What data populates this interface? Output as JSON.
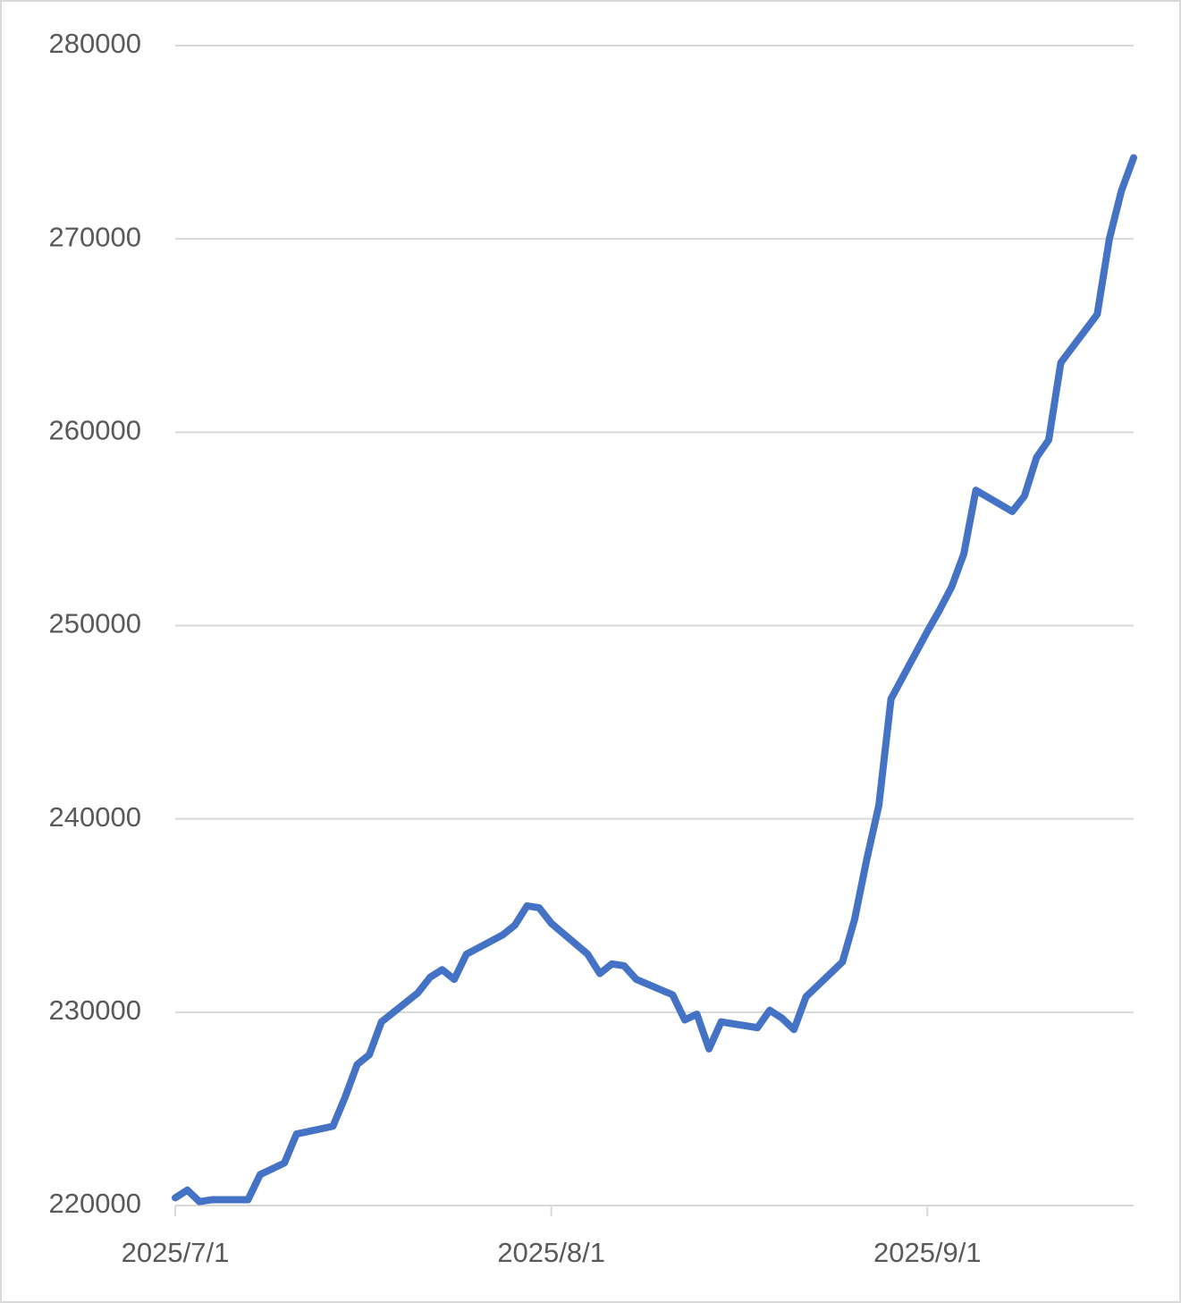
{
  "chart_data": {
    "type": "line",
    "x": [
      "2025-07-01",
      "2025-07-02",
      "2025-07-03",
      "2025-07-04",
      "2025-07-07",
      "2025-07-08",
      "2025-07-09",
      "2025-07-10",
      "2025-07-11",
      "2025-07-14",
      "2025-07-15",
      "2025-07-16",
      "2025-07-17",
      "2025-07-18",
      "2025-07-21",
      "2025-07-22",
      "2025-07-23",
      "2025-07-24",
      "2025-07-25",
      "2025-07-28",
      "2025-07-29",
      "2025-07-30",
      "2025-07-31",
      "2025-08-01",
      "2025-08-04",
      "2025-08-05",
      "2025-08-06",
      "2025-08-07",
      "2025-08-08",
      "2025-08-11",
      "2025-08-12",
      "2025-08-13",
      "2025-08-14",
      "2025-08-15",
      "2025-08-18",
      "2025-08-19",
      "2025-08-20",
      "2025-08-21",
      "2025-08-22",
      "2025-08-25",
      "2025-08-26",
      "2025-08-27",
      "2025-08-28",
      "2025-08-29",
      "2025-09-01",
      "2025-09-02",
      "2025-09-03",
      "2025-09-04",
      "2025-09-05",
      "2025-09-08",
      "2025-09-09",
      "2025-09-10",
      "2025-09-11",
      "2025-09-12",
      "2025-09-15",
      "2025-09-16",
      "2025-09-17",
      "2025-09-18"
    ],
    "series": [
      {
        "color": "#4472c4",
        "values": [
          220400,
          220800,
          220200,
          220300,
          220300,
          221600,
          221900,
          222200,
          223700,
          224100,
          225600,
          227300,
          227800,
          229500,
          231000,
          231800,
          232200,
          231700,
          233000,
          234000,
          234500,
          235500,
          235400,
          234600,
          233000,
          232000,
          232500,
          232400,
          231700,
          230900,
          229600,
          229900,
          228100,
          229500,
          229200,
          230100,
          229700,
          229100,
          230800,
          232600,
          234800,
          237900,
          240700,
          246200,
          249700,
          250800,
          252000,
          253700,
          257000,
          255900,
          256700,
          258700,
          259600,
          263600,
          266100,
          270000,
          272500,
          274200
        ]
      }
    ],
    "xlim": [
      "2025-07-01",
      "2025-09-18"
    ],
    "xticks": [
      {
        "value": "2025-07-01",
        "label": "2025/7/1"
      },
      {
        "value": "2025-08-01",
        "label": "2025/8/1"
      },
      {
        "value": "2025-09-01",
        "label": "2025/9/1"
      }
    ],
    "ylim": [
      220000,
      280000
    ],
    "yticks": [
      220000,
      230000,
      240000,
      250000,
      260000,
      270000,
      280000
    ],
    "grid": true
  }
}
